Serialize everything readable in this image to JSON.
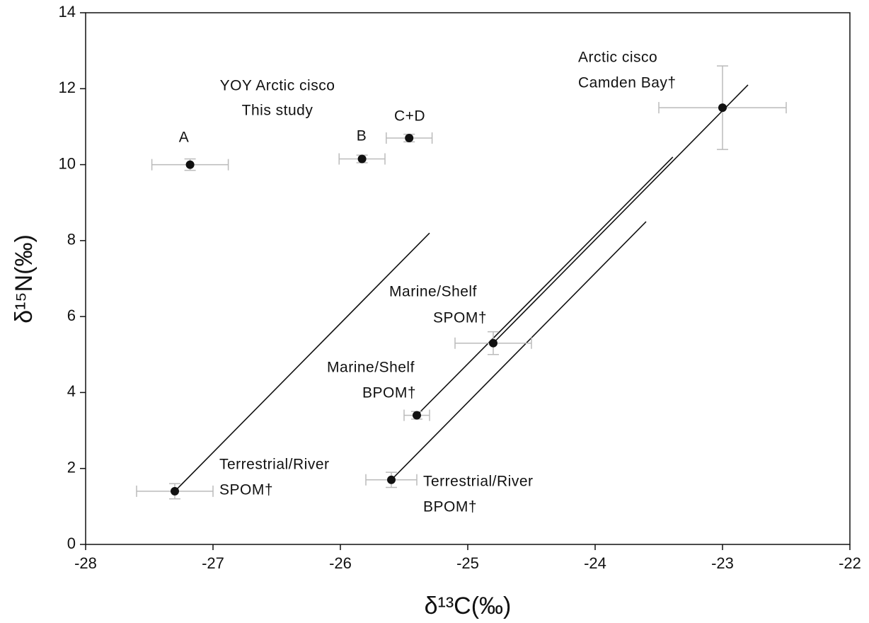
{
  "chart_data": {
    "type": "scatter",
    "xlabel": "δ¹³C(‰)",
    "ylabel": "δ¹⁵N(‰)",
    "xlim": [
      -28,
      -22
    ],
    "ylim": [
      0,
      14
    ],
    "xticks": [
      -28,
      -27,
      -26,
      -25,
      -24,
      -23,
      -22
    ],
    "yticks": [
      0,
      2,
      4,
      6,
      8,
      10,
      12,
      14
    ],
    "grid": false,
    "series": [
      {
        "color": "#111111",
        "errorbar_color": "#bbbbbb",
        "x": [
          -27.18,
          -25.83,
          -25.46,
          -23.0,
          -24.8,
          -25.4,
          -27.3,
          -25.6
        ],
        "values": [
          10.0,
          10.15,
          10.7,
          11.5,
          5.3,
          3.4,
          1.4,
          1.7
        ],
        "xerr": [
          0.3,
          0.18,
          0.18,
          0.5,
          0.3,
          0.1,
          0.3,
          0.2
        ],
        "yerr": [
          0.15,
          0.1,
          0.1,
          1.1,
          0.3,
          0.1,
          0.2,
          0.2
        ]
      }
    ],
    "lines": [
      {
        "x": [
          -27.3,
          -25.3
        ],
        "y": [
          1.4,
          8.2
        ]
      },
      {
        "x": [
          -25.4,
          -23.39
        ],
        "y": [
          3.4,
          10.2
        ]
      },
      {
        "x": [
          -24.8,
          -22.8
        ],
        "y": [
          5.3,
          12.1
        ]
      },
      {
        "x": [
          -25.6,
          -23.6
        ],
        "y": [
          1.7,
          8.5
        ]
      }
    ],
    "annotations": [
      "YOY Arctic cisco",
      "This study",
      "A",
      "B",
      "C+D",
      "Arctic cisco",
      "Camden Bay†",
      "Marine/Shelf",
      "SPOM†",
      "Marine/Shelf",
      "BPOM†",
      "Terrestrial/River",
      "SPOM†",
      "Terrestrial/River",
      "BPOM†"
    ]
  }
}
